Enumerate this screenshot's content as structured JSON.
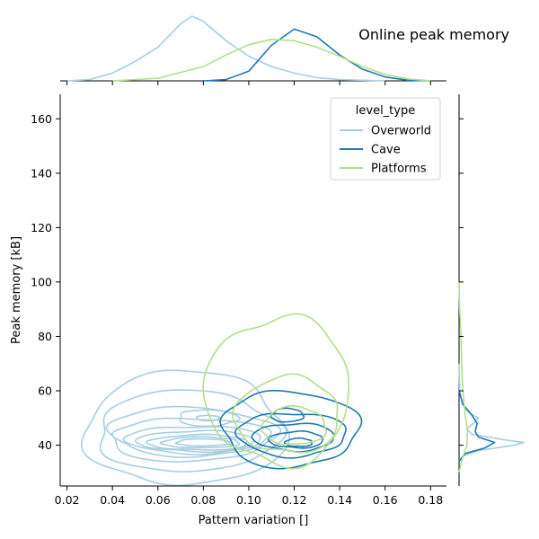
{
  "chart_data": {
    "type": "kde_joint",
    "title": "Online peak memory",
    "xlabel": "Pattern variation []",
    "ylabel": "Peak memory [kB]",
    "xlim": [
      0.017,
      0.187
    ],
    "ylim": [
      25,
      169
    ],
    "xticks": [
      "0.02",
      "0.04",
      "0.06",
      "0.08",
      "0.10",
      "0.12",
      "0.14",
      "0.16",
      "0.18"
    ],
    "yticks": [
      "40",
      "60",
      "80",
      "100",
      "120",
      "140",
      "160"
    ],
    "legend": {
      "title": "level_type",
      "position": "top-right"
    },
    "series": [
      {
        "name": "Overworld",
        "color": "#a6cee3",
        "levels": [
          {
            "cx": 0.072,
            "cy": 46,
            "rx": 0.044,
            "ry": 21
          },
          {
            "cx": 0.073,
            "cy": 45,
            "rx": 0.04,
            "ry": 15
          },
          {
            "cx": 0.074,
            "cy": 44,
            "rx": 0.037,
            "ry": 10
          },
          {
            "cx": 0.075,
            "cy": 43,
            "rx": 0.034,
            "ry": 7
          },
          {
            "cx": 0.076,
            "cy": 42,
            "rx": 0.03,
            "ry": 5
          },
          {
            "cx": 0.077,
            "cy": 41.5,
            "rx": 0.026,
            "ry": 3.8
          },
          {
            "cx": 0.078,
            "cy": 41,
            "rx": 0.022,
            "ry": 2.8
          },
          {
            "cx": 0.079,
            "cy": 41,
            "rx": 0.017,
            "ry": 2.0
          },
          {
            "cx": 0.08,
            "cy": 41,
            "rx": 0.012,
            "ry": 1.3
          },
          {
            "cx": 0.082,
            "cy": 50,
            "rx": 0.013,
            "ry": 3
          },
          {
            "cx": 0.082,
            "cy": 50,
            "rx": 0.005,
            "ry": 1
          }
        ],
        "marginal_x": [
          [
            0.02,
            0
          ],
          [
            0.03,
            0.02
          ],
          [
            0.04,
            0.12
          ],
          [
            0.05,
            0.3
          ],
          [
            0.06,
            0.52
          ],
          [
            0.07,
            0.88
          ],
          [
            0.075,
            1.0
          ],
          [
            0.08,
            0.92
          ],
          [
            0.09,
            0.62
          ],
          [
            0.1,
            0.38
          ],
          [
            0.11,
            0.22
          ],
          [
            0.12,
            0.12
          ],
          [
            0.13,
            0.05
          ],
          [
            0.14,
            0.02
          ],
          [
            0.16,
            0
          ]
        ],
        "marginal_y": [
          [
            34,
            0
          ],
          [
            36,
            0.05
          ],
          [
            38,
            0.3
          ],
          [
            40,
            0.85
          ],
          [
            41,
            1.0
          ],
          [
            42,
            0.7
          ],
          [
            44,
            0.2
          ],
          [
            46,
            0.12
          ],
          [
            48,
            0.22
          ],
          [
            50,
            0.3
          ],
          [
            52,
            0.15
          ],
          [
            55,
            0.05
          ],
          [
            60,
            0.01
          ],
          [
            70,
            0
          ]
        ]
      },
      {
        "name": "Cave",
        "color": "#1f78b4",
        "levels": [
          {
            "cx": 0.118,
            "cy": 46,
            "rx": 0.03,
            "ry": 14
          },
          {
            "cx": 0.119,
            "cy": 44,
            "rx": 0.024,
            "ry": 8
          },
          {
            "cx": 0.12,
            "cy": 43,
            "rx": 0.018,
            "ry": 5
          },
          {
            "cx": 0.121,
            "cy": 42,
            "rx": 0.012,
            "ry": 3
          },
          {
            "cx": 0.122,
            "cy": 41,
            "rx": 0.006,
            "ry": 1.5
          },
          {
            "cx": 0.117,
            "cy": 51,
            "rx": 0.007,
            "ry": 2.5
          }
        ],
        "marginal_x": [
          [
            0.08,
            0
          ],
          [
            0.09,
            0.02
          ],
          [
            0.1,
            0.15
          ],
          [
            0.11,
            0.55
          ],
          [
            0.12,
            0.8
          ],
          [
            0.13,
            0.68
          ],
          [
            0.14,
            0.4
          ],
          [
            0.15,
            0.18
          ],
          [
            0.16,
            0.06
          ],
          [
            0.17,
            0.01
          ],
          [
            0.18,
            0
          ]
        ],
        "marginal_y": [
          [
            34,
            0
          ],
          [
            37,
            0.1
          ],
          [
            39,
            0.4
          ],
          [
            41,
            0.55
          ],
          [
            43,
            0.3
          ],
          [
            45,
            0.25
          ],
          [
            48,
            0.28
          ],
          [
            51,
            0.2
          ],
          [
            55,
            0.06
          ],
          [
            60,
            0
          ]
        ]
      },
      {
        "name": "Platforms",
        "color": "#b2df8a",
        "levels": [
          {
            "cx": 0.113,
            "cy": 60,
            "rx": 0.032,
            "ry": 27
          },
          {
            "cx": 0.117,
            "cy": 51,
            "rx": 0.023,
            "ry": 14
          },
          {
            "cx": 0.12,
            "cy": 47,
            "rx": 0.014,
            "ry": 7
          }
        ],
        "marginal_x": [
          [
            0.04,
            0
          ],
          [
            0.06,
            0.04
          ],
          [
            0.08,
            0.22
          ],
          [
            0.09,
            0.4
          ],
          [
            0.1,
            0.56
          ],
          [
            0.11,
            0.64
          ],
          [
            0.12,
            0.62
          ],
          [
            0.13,
            0.52
          ],
          [
            0.14,
            0.38
          ],
          [
            0.15,
            0.22
          ],
          [
            0.16,
            0.1
          ],
          [
            0.17,
            0.03
          ],
          [
            0.18,
            0
          ]
        ],
        "marginal_y": [
          [
            30,
            0
          ],
          [
            35,
            0.05
          ],
          [
            40,
            0.12
          ],
          [
            45,
            0.13
          ],
          [
            50,
            0.1
          ],
          [
            60,
            0.06
          ],
          [
            70,
            0.04
          ],
          [
            80,
            0.03
          ],
          [
            90,
            0.01
          ],
          [
            100,
            0
          ]
        ]
      }
    ]
  }
}
